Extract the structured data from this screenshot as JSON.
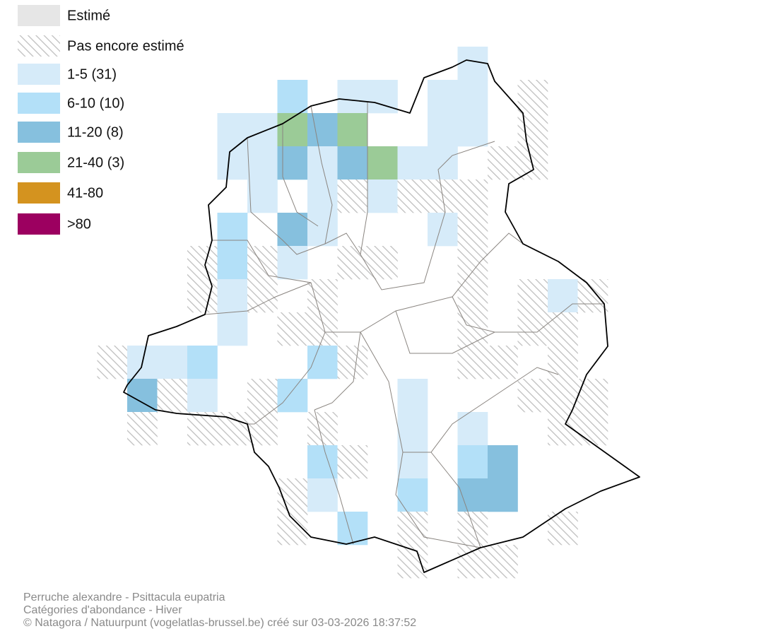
{
  "legend": [
    {
      "label": "Estimé",
      "color": "#e6e6e6"
    },
    {
      "label": "Pas encore estimé"
    },
    {
      "label": "1-5 (31)",
      "color": "#d6ebf9"
    },
    {
      "label": "6-10 (10)",
      "color": "#b3e0f8"
    },
    {
      "label": "11-20 (8)",
      "color": "#86c0de"
    },
    {
      "label": "21-40 (3)",
      "color": "#9bcb97"
    },
    {
      "label": "41-80",
      "color": "#d4931f"
    },
    {
      "label": ">80",
      "color": "#9c0060"
    }
  ],
  "footer": [
    "Perruche alexandre - Psittacula eupatria",
    "Catégories d'abondance - Hiver",
    "© Natagora / Natuurpunt (vogelatlas-brussel.be) créé sur 03-03-2026 18:37:52"
  ]
}
